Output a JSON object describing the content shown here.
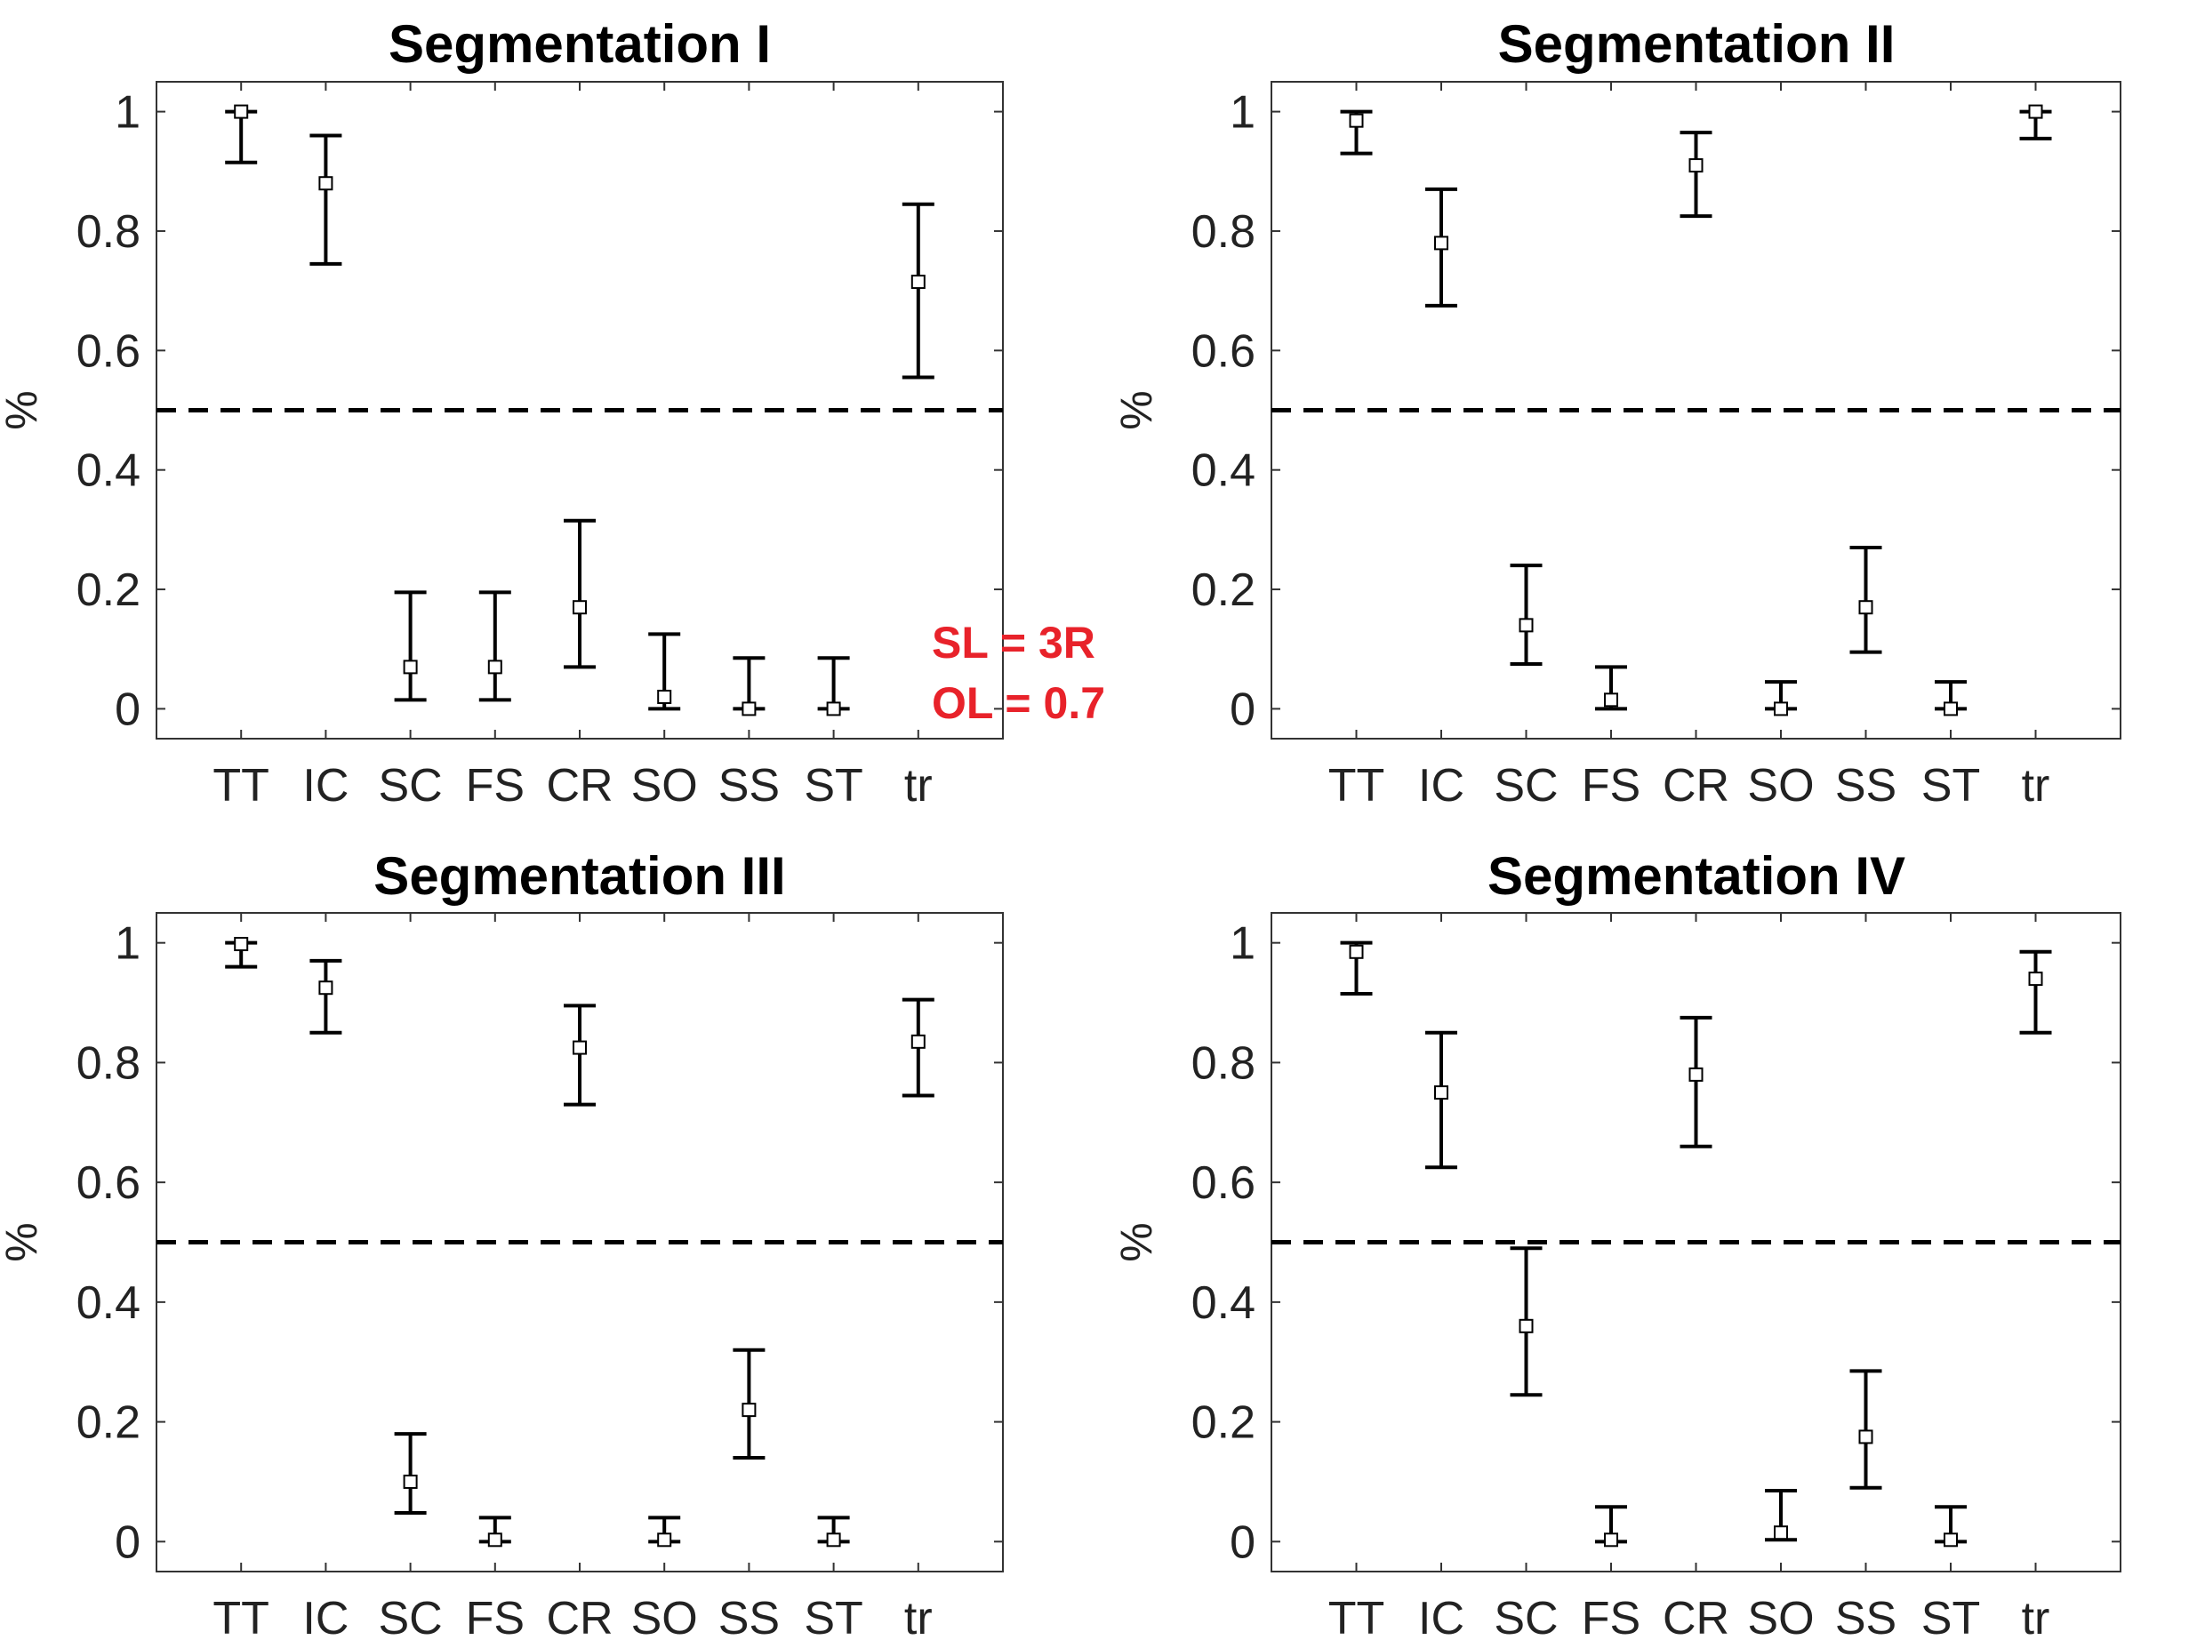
{
  "chart_data": [
    {
      "type": "errorbar",
      "title": "Segmentation I",
      "ylabel": "%",
      "categories": [
        "TT",
        "IC",
        "SC",
        "FS",
        "CR",
        "SO",
        "SS",
        "ST",
        "tr"
      ],
      "yticks": [
        "0",
        "0.2",
        "0.4",
        "0.6",
        "0.8",
        "1"
      ],
      "ylim": [
        -0.05,
        1.05
      ],
      "threshold": 0.5,
      "series": [
        {
          "values": [
            1.0,
            0.88,
            0.07,
            0.07,
            null,
            0.02,
            0.0,
            0.0,
            0.715
          ],
          "lower": [
            0.915,
            0.745,
            0.015,
            0.015,
            null,
            0.0,
            0.0,
            0.0,
            0.555
          ],
          "upper": [
            1.0,
            0.96,
            0.195,
            0.195,
            null,
            0.125,
            0.085,
            0.085,
            0.845
          ]
        }
      ],
      "extra_points": [
        {
          "category": "CR",
          "value": 0.17,
          "lower": 0.07,
          "upper": 0.315
        }
      ],
      "annotations": [
        "SL = 3R",
        "OL = 0.7"
      ]
    },
    {
      "type": "errorbar",
      "title": "Segmentation II",
      "ylabel": "%",
      "categories": [
        "TT",
        "IC",
        "SC",
        "FS",
        "CR",
        "SO",
        "SS",
        "ST",
        "tr"
      ],
      "yticks": [
        "0",
        "0.2",
        "0.4",
        "0.6",
        "0.8",
        "1"
      ],
      "ylim": [
        -0.05,
        1.05
      ],
      "threshold": 0.5,
      "series": [
        {
          "values": [
            0.985,
            0.78,
            0.14,
            0.015,
            0.91,
            0.0,
            0.17,
            0.0,
            1.0
          ],
          "lower": [
            0.93,
            0.675,
            0.075,
            0.0,
            0.825,
            0.0,
            0.095,
            0.0,
            0.955
          ],
          "upper": [
            1.0,
            0.87,
            0.24,
            0.07,
            0.965,
            0.045,
            0.27,
            0.045,
            1.0
          ]
        }
      ],
      "annotations": []
    },
    {
      "type": "errorbar",
      "title": "Segmentation III",
      "ylabel": "%",
      "categories": [
        "TT",
        "IC",
        "SC",
        "FS",
        "CR",
        "SO",
        "SS",
        "ST",
        "tr"
      ],
      "yticks": [
        "0",
        "0.2",
        "0.4",
        "0.6",
        "0.8",
        "1"
      ],
      "ylim": [
        -0.05,
        1.05
      ],
      "threshold": 0.5,
      "series": [
        {
          "values": [
            0.998,
            0.925,
            0.1,
            0.003,
            0.825,
            0.003,
            0.22,
            0.003,
            0.835
          ],
          "lower": [
            0.96,
            0.85,
            0.048,
            0.0,
            0.73,
            0.0,
            0.14,
            0.0,
            0.745
          ],
          "upper": [
            1.0,
            0.97,
            0.18,
            0.04,
            0.895,
            0.04,
            0.32,
            0.04,
            0.905
          ]
        }
      ],
      "annotations": []
    },
    {
      "type": "errorbar",
      "title": "Segmentation IV",
      "ylabel": "%",
      "categories": [
        "TT",
        "IC",
        "SC",
        "FS",
        "CR",
        "SO",
        "SS",
        "ST",
        "tr"
      ],
      "yticks": [
        "0",
        "0.2",
        "0.4",
        "0.6",
        "0.8",
        "1"
      ],
      "ylim": [
        -0.05,
        1.05
      ],
      "threshold": 0.5,
      "series": [
        {
          "values": [
            0.985,
            0.75,
            0.36,
            0.003,
            0.78,
            0.015,
            0.175,
            0.003,
            0.94
          ],
          "lower": [
            0.915,
            0.625,
            0.245,
            0.0,
            0.66,
            0.003,
            0.09,
            0.0,
            0.85
          ],
          "upper": [
            1.0,
            0.85,
            0.49,
            0.058,
            0.875,
            0.085,
            0.285,
            0.058,
            0.985
          ]
        }
      ],
      "annotations": []
    }
  ]
}
